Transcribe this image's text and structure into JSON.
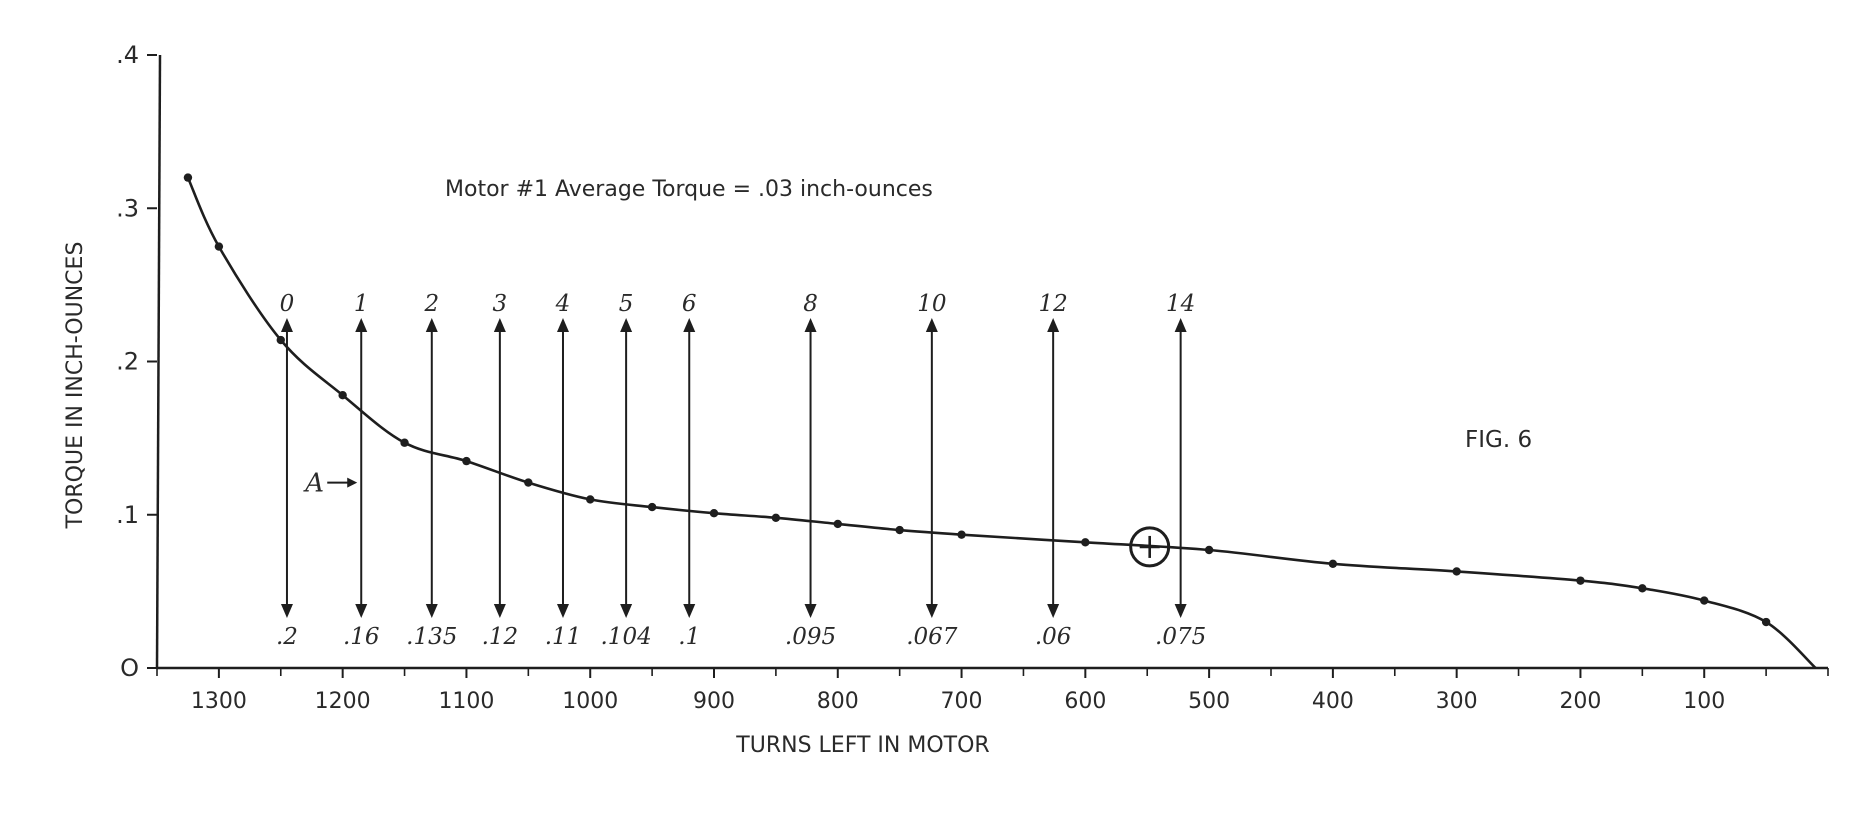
{
  "chart_data": {
    "type": "line",
    "title": "",
    "annotation": "Motor #1  Average Torque = .03 inch-ounces",
    "figure_label": "FIG. 6",
    "xlabel": "TURNS LEFT IN MOTOR",
    "ylabel": "TORQUE IN INCH-OUNCES",
    "xlim": [
      1350,
      0
    ],
    "ylim": [
      0,
      0.4
    ],
    "x_ticks": [
      1300,
      1200,
      1100,
      1000,
      900,
      800,
      700,
      600,
      500,
      400,
      300,
      200,
      100
    ],
    "x_tick_labels": [
      "1300",
      "1200",
      "1100",
      "1000",
      "900",
      "800",
      "700",
      "600",
      "500",
      "400",
      "300",
      "200",
      "100"
    ],
    "y_ticks": [
      0,
      0.1,
      0.2,
      0.3,
      0.4
    ],
    "y_tick_labels": [
      "O",
      ".1",
      ".2",
      ".3",
      ".4"
    ],
    "grid": false,
    "series": [
      {
        "x": [
          1325,
          1300,
          1250,
          1200,
          1150,
          1100,
          1050,
          1000,
          950,
          900,
          850,
          800,
          750,
          700,
          600,
          500,
          400,
          300,
          200,
          150,
          100,
          50,
          10
        ],
        "y": [
          0.32,
          0.275,
          0.214,
          0.178,
          0.147,
          0.135,
          0.121,
          0.11,
          0.105,
          0.101,
          0.098,
          0.094,
          0.09,
          0.087,
          0.082,
          0.077,
          0.068,
          0.063,
          0.057,
          0.052,
          0.044,
          0.03,
          0
        ]
      }
    ],
    "markers": [
      {
        "x": 1245,
        "top_label": "0",
        "bottom_label": ".2"
      },
      {
        "x": 1185,
        "top_label": "1",
        "bottom_label": ".16"
      },
      {
        "x": 1128,
        "top_label": "2",
        "bottom_label": ".135"
      },
      {
        "x": 1073,
        "top_label": "3",
        "bottom_label": ".12"
      },
      {
        "x": 1022,
        "top_label": "4",
        "bottom_label": ".11"
      },
      {
        "x": 971,
        "top_label": "5",
        "bottom_label": ".104"
      },
      {
        "x": 920,
        "top_label": "6",
        "bottom_label": ".1"
      },
      {
        "x": 822,
        "top_label": "8",
        "bottom_label": ".095"
      },
      {
        "x": 724,
        "top_label": "10",
        "bottom_label": ".067"
      },
      {
        "x": 626,
        "top_label": "12",
        "bottom_label": ".06"
      },
      {
        "x": 523,
        "top_label": "14",
        "bottom_label": ".075"
      }
    ],
    "point_label": {
      "text": "A",
      "x": 1185,
      "y": 0.121
    },
    "circled_point": {
      "x": 548,
      "y": 0.079
    }
  }
}
